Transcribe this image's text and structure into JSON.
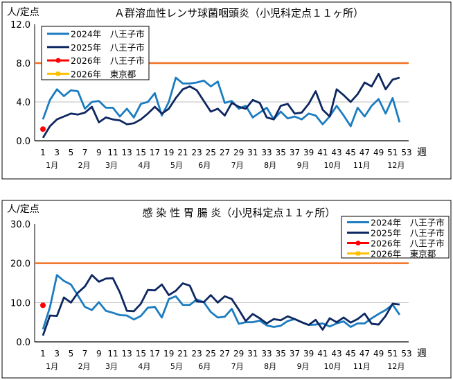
{
  "chart_data": [
    {
      "type": "line",
      "title": "Ａ群溶血性レンサ球菌咽頭炎（小児科定点１１ヶ所）",
      "ylabel": "人/定点",
      "xlabel": "週",
      "ylim": [
        0,
        12
      ],
      "yticks": [
        "0.0",
        "4.0",
        "8.0",
        "12.0"
      ],
      "ytick_values": [
        0,
        4,
        8,
        12
      ],
      "xticks": [
        1,
        3,
        5,
        7,
        9,
        11,
        13,
        15,
        17,
        19,
        21,
        23,
        25,
        27,
        29,
        31,
        33,
        35,
        37,
        39,
        41,
        43,
        45,
        47,
        49,
        51,
        53
      ],
      "xlim": [
        1,
        53
      ],
      "months": [
        {
          "label": "1月",
          "week": 2.3
        },
        {
          "label": "2月",
          "week": 6.9
        },
        {
          "label": "3月",
          "week": 10.8
        },
        {
          "label": "4月",
          "week": 15.5
        },
        {
          "label": "5月",
          "week": 20.1
        },
        {
          "label": "6月",
          "week": 24.1
        },
        {
          "label": "7月",
          "week": 28.8
        },
        {
          "label": "8月",
          "week": 33.5
        },
        {
          "label": "9月",
          "week": 38.2
        },
        {
          "label": "10月",
          "week": 42.4
        },
        {
          "label": "11月",
          "week": 46.6
        },
        {
          "label": "12月",
          "week": 51.5
        }
      ],
      "grid": true,
      "legend": "top-left",
      "reference_line": {
        "value": 8.0,
        "color": "#F07020"
      },
      "series": [
        {
          "name": "2024年　八王子市",
          "color": "#1B7CC0",
          "values": [
            2.2,
            4.2,
            5.3,
            4.6,
            5.2,
            5.1,
            3.3,
            4.0,
            4.1,
            3.4,
            3.4,
            2.5,
            3.3,
            2.4,
            3.8,
            4.0,
            4.9,
            2.6,
            4.0,
            6.5,
            5.9,
            5.9,
            6.0,
            6.2,
            5.6,
            6.1,
            3.9,
            4.1,
            3.3,
            3.6,
            2.4,
            2.9,
            3.4,
            2.2,
            3.0,
            2.3,
            2.5,
            2.2,
            2.8,
            2.6,
            1.7,
            2.5,
            3.6,
            2.6,
            1.5,
            3.4,
            2.5,
            3.6,
            4.3,
            2.8,
            4.4,
            1.9
          ]
        },
        {
          "name": "2025年　八王子市",
          "color": "#0D2760",
          "values": [
            0.3,
            1.5,
            2.2,
            2.5,
            2.8,
            2.7,
            2.9,
            3.5,
            1.9,
            2.4,
            2.2,
            2.1,
            1.7,
            1.8,
            2.2,
            2.8,
            3.5,
            2.8,
            3.3,
            4.4,
            5.3,
            5.6,
            5.2,
            4.1,
            3.0,
            3.3,
            2.6,
            3.9,
            3.5,
            3.3,
            4.2,
            3.9,
            2.4,
            2.2,
            3.6,
            3.8,
            2.8,
            2.9,
            3.8,
            5.1,
            3.2,
            2.5,
            5.3,
            4.7,
            4.0,
            4.8,
            6.0,
            5.6,
            6.9,
            5.3,
            6.3,
            6.5
          ]
        },
        {
          "name": "2026年　八王子市",
          "color": "#FF0000",
          "values": [
            1.2
          ]
        },
        {
          "name": "2026年　東京都",
          "color": "#FFC000",
          "values": []
        }
      ]
    },
    {
      "type": "line",
      "title": "感 染 性 胃 腸 炎（小児科定点１１ヶ所）",
      "ylabel": "人/定点",
      "xlabel": "週",
      "ylim": [
        0,
        30
      ],
      "yticks": [
        "0.0",
        "10.0",
        "20.0",
        "30.0"
      ],
      "ytick_values": [
        0,
        10,
        20,
        30
      ],
      "xticks": [
        1,
        3,
        5,
        7,
        9,
        11,
        13,
        15,
        17,
        19,
        21,
        23,
        25,
        27,
        29,
        31,
        33,
        35,
        37,
        39,
        41,
        43,
        45,
        47,
        49,
        51,
        53
      ],
      "xlim": [
        1,
        53
      ],
      "months": [
        {
          "label": "1月",
          "week": 2.3
        },
        {
          "label": "2月",
          "week": 6.9
        },
        {
          "label": "3月",
          "week": 10.8
        },
        {
          "label": "4月",
          "week": 15.5
        },
        {
          "label": "5月",
          "week": 20.1
        },
        {
          "label": "6月",
          "week": 24.1
        },
        {
          "label": "7月",
          "week": 28.8
        },
        {
          "label": "8月",
          "week": 33.5
        },
        {
          "label": "9月",
          "week": 38.2
        },
        {
          "label": "10月",
          "week": 42.4
        },
        {
          "label": "11月",
          "week": 46.6
        },
        {
          "label": "12月",
          "week": 51.5
        }
      ],
      "grid": true,
      "legend": "top-right",
      "reference_line": {
        "value": 20.0,
        "color": "#F07020"
      },
      "series": [
        {
          "name": "2024年　八王子市",
          "color": "#1B7CC0",
          "values": [
            3.2,
            8.8,
            17.0,
            15.5,
            14.6,
            11.8,
            8.9,
            8.1,
            10.1,
            7.9,
            7.4,
            6.8,
            6.7,
            5.7,
            6.6,
            8.7,
            8.9,
            6.2,
            10.9,
            11.6,
            9.4,
            9.4,
            10.8,
            10.1,
            7.6,
            6.2,
            6.4,
            8.4,
            4.6,
            5.0,
            5.0,
            5.4,
            4.2,
            3.8,
            4.1,
            5.3,
            5.8,
            5.0,
            4.3,
            4.4,
            4.7,
            3.9,
            4.7,
            5.2,
            3.8,
            4.7,
            4.7,
            6.0,
            7.1,
            8.1,
            9.5,
            6.9
          ]
        },
        {
          "name": "2025年　八王子市",
          "color": "#0D2760",
          "values": [
            1.6,
            6.7,
            6.6,
            11.3,
            10.0,
            12.5,
            14.1,
            17.0,
            15.3,
            16.1,
            16.2,
            12.6,
            7.9,
            7.8,
            9.7,
            13.2,
            13.1,
            14.6,
            11.9,
            13.0,
            14.9,
            14.3,
            10.3,
            10.1,
            11.9,
            10.0,
            11.6,
            10.9,
            8.2,
            5.3,
            7.1,
            6.0,
            4.7,
            5.8,
            5.5,
            6.5,
            5.8,
            5.0,
            4.3,
            5.6,
            3.1,
            6.0,
            5.0,
            6.2,
            4.9,
            5.8,
            7.2,
            4.6,
            4.4,
            6.6,
            9.7,
            9.5
          ]
        },
        {
          "name": "2026年　八王子市",
          "color": "#FF0000",
          "values": [
            9.3
          ]
        },
        {
          "name": "2026年　東京都",
          "color": "#FFC000",
          "values": []
        }
      ]
    }
  ]
}
